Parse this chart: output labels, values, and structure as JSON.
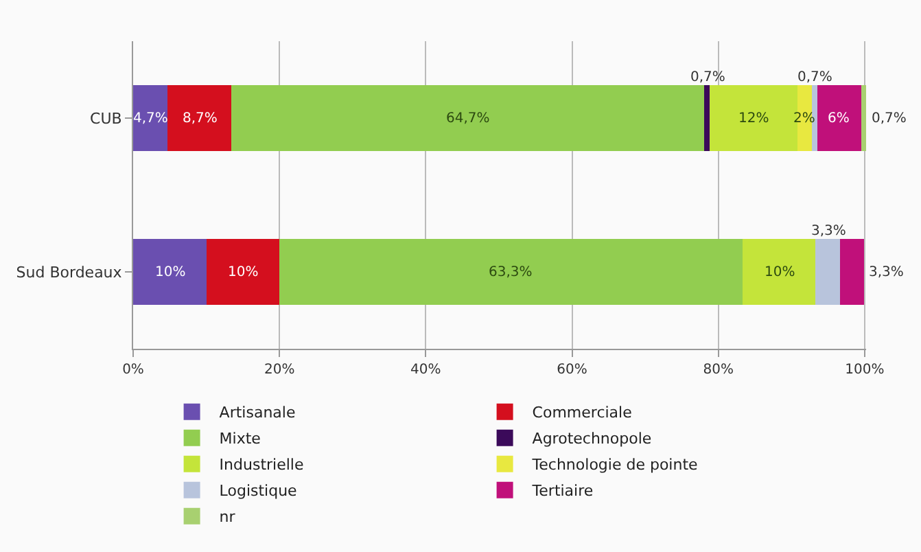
{
  "chart_data": {
    "type": "bar",
    "orientation": "horizontal",
    "stacked": true,
    "categories": [
      "CUB",
      "Sud Bordeaux"
    ],
    "series": [
      {
        "name": "Artisanale",
        "color": "#6a4fb0",
        "values": [
          4.7,
          10
        ],
        "value_labels": [
          "4,7%",
          "10%"
        ]
      },
      {
        "name": "Commerciale",
        "color": "#d40f1e",
        "values": [
          8.7,
          10
        ],
        "value_labels": [
          "8,7%",
          "10%"
        ]
      },
      {
        "name": "Mixte",
        "color": "#92cd50",
        "values": [
          64.7,
          63.3
        ],
        "value_labels": [
          "64,7%",
          "63,3%"
        ]
      },
      {
        "name": "Agrotechnopole",
        "color": "#3b0a5a",
        "values": [
          0.7,
          0
        ],
        "value_labels": [
          "0,7%",
          null
        ]
      },
      {
        "name": "Industrielle",
        "color": "#c4e43a",
        "values": [
          12,
          10
        ],
        "value_labels": [
          "12%",
          "10%"
        ]
      },
      {
        "name": "Technologie de pointe",
        "color": "#e8e840",
        "values": [
          2,
          0
        ],
        "value_labels": [
          "2%",
          null
        ]
      },
      {
        "name": "Logistique",
        "color": "#b8c4dc",
        "values": [
          0.7,
          3.3
        ],
        "value_labels": [
          "0,7%",
          "3,3%"
        ]
      },
      {
        "name": "Tertiaire",
        "color": "#c0107a",
        "values": [
          6,
          3.3
        ],
        "value_labels": [
          "6%",
          "3,3%"
        ]
      },
      {
        "name": "nr",
        "color": "#a8d070",
        "values": [
          0.7,
          0
        ],
        "value_labels": [
          "0,7%",
          null
        ]
      }
    ],
    "xlim": [
      0,
      100.2
    ],
    "xticks": [
      {
        "value": 0,
        "label": "0%"
      },
      {
        "value": 20,
        "label": "20%"
      },
      {
        "value": 40,
        "label": "40%"
      },
      {
        "value": 60,
        "label": "60%"
      },
      {
        "value": 80,
        "label": "80%"
      },
      {
        "value": 100,
        "label": "100%"
      }
    ],
    "grid": "x",
    "legend": "bottom"
  }
}
